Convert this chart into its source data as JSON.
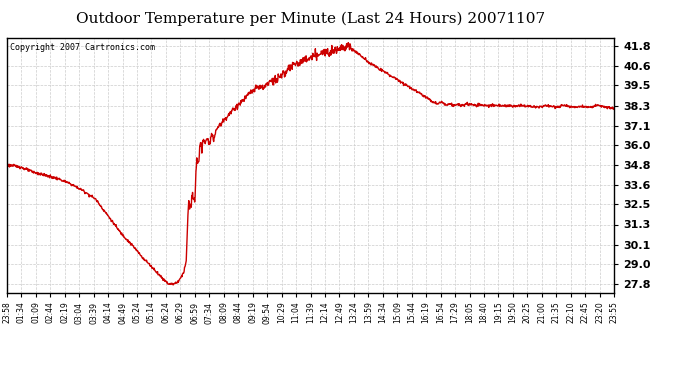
{
  "title": "Outdoor Temperature per Minute (Last 24 Hours) 20071107",
  "copyright": "Copyright 2007 Cartronics.com",
  "line_color": "#cc0000",
  "background_color": "#ffffff",
  "grid_color": "#cccccc",
  "title_fontsize": 11,
  "yticks": [
    27.8,
    29.0,
    30.1,
    31.3,
    32.5,
    33.6,
    34.8,
    36.0,
    37.1,
    38.3,
    39.5,
    40.6,
    41.8
  ],
  "ylim": [
    27.3,
    42.3
  ],
  "xtick_labels": [
    "23:58",
    "01:34",
    "01:09",
    "02:44",
    "02:19",
    "03:04",
    "03:39",
    "04:14",
    "04:49",
    "05:24",
    "05:14",
    "06:24",
    "06:29",
    "06:59",
    "07:34",
    "08:09",
    "08:44",
    "09:19",
    "09:54",
    "10:29",
    "11:04",
    "11:39",
    "12:14",
    "12:49",
    "13:24",
    "13:59",
    "14:34",
    "15:09",
    "15:44",
    "16:19",
    "16:54",
    "17:29",
    "18:05",
    "18:40",
    "19:15",
    "19:50",
    "20:25",
    "21:00",
    "21:35",
    "22:10",
    "22:45",
    "23:20",
    "23:55"
  ],
  "line_width": 1.0,
  "keypoints": [
    [
      0,
      34.8
    ],
    [
      30,
      34.7
    ],
    [
      60,
      34.4
    ],
    [
      90,
      34.2
    ],
    [
      120,
      34.0
    ],
    [
      150,
      33.7
    ],
    [
      180,
      33.3
    ],
    [
      210,
      32.8
    ],
    [
      240,
      31.8
    ],
    [
      270,
      30.8
    ],
    [
      300,
      30.0
    ],
    [
      320,
      29.4
    ],
    [
      340,
      28.9
    ],
    [
      355,
      28.5
    ],
    [
      370,
      28.1
    ],
    [
      383,
      27.82
    ],
    [
      390,
      27.8
    ],
    [
      395,
      27.82
    ],
    [
      400,
      27.85
    ],
    [
      408,
      28.0
    ],
    [
      415,
      28.3
    ],
    [
      420,
      28.6
    ],
    [
      425,
      29.2
    ],
    [
      430,
      32.5
    ],
    [
      435,
      32.3
    ],
    [
      440,
      33.0
    ],
    [
      445,
      32.6
    ],
    [
      450,
      35.2
    ],
    [
      455,
      35.0
    ],
    [
      458,
      36.0
    ],
    [
      462,
      35.8
    ],
    [
      465,
      36.2
    ],
    [
      470,
      36.0
    ],
    [
      475,
      36.4
    ],
    [
      480,
      36.1
    ],
    [
      485,
      36.5
    ],
    [
      490,
      36.3
    ],
    [
      495,
      36.8
    ],
    [
      500,
      37.0
    ],
    [
      510,
      37.3
    ],
    [
      520,
      37.6
    ],
    [
      530,
      37.9
    ],
    [
      540,
      38.1
    ],
    [
      550,
      38.4
    ],
    [
      560,
      38.6
    ],
    [
      570,
      38.9
    ],
    [
      580,
      39.1
    ],
    [
      590,
      39.3
    ],
    [
      600,
      39.4
    ],
    [
      610,
      39.3
    ],
    [
      615,
      39.6
    ],
    [
      620,
      39.5
    ],
    [
      625,
      39.9
    ],
    [
      630,
      39.6
    ],
    [
      635,
      40.0
    ],
    [
      640,
      39.7
    ],
    [
      645,
      40.1
    ],
    [
      650,
      40.0
    ],
    [
      655,
      40.3
    ],
    [
      660,
      40.2
    ],
    [
      665,
      40.4
    ],
    [
      670,
      40.5
    ],
    [
      675,
      40.6
    ],
    [
      680,
      40.7
    ],
    [
      690,
      40.8
    ],
    [
      700,
      40.9
    ],
    [
      710,
      41.0
    ],
    [
      720,
      41.1
    ],
    [
      730,
      41.2
    ],
    [
      740,
      41.3
    ],
    [
      750,
      41.4
    ],
    [
      760,
      41.5
    ],
    [
      770,
      41.55
    ],
    [
      780,
      41.6
    ],
    [
      790,
      41.7
    ],
    [
      800,
      41.75
    ],
    [
      808,
      41.8
    ],
    [
      812,
      41.75
    ],
    [
      818,
      41.65
    ],
    [
      825,
      41.5
    ],
    [
      835,
      41.3
    ],
    [
      845,
      41.1
    ],
    [
      860,
      40.8
    ],
    [
      880,
      40.5
    ],
    [
      900,
      40.2
    ],
    [
      920,
      39.9
    ],
    [
      940,
      39.6
    ],
    [
      960,
      39.3
    ],
    [
      980,
      39.0
    ],
    [
      1000,
      38.7
    ],
    [
      1010,
      38.5
    ],
    [
      1020,
      38.4
    ],
    [
      1030,
      38.5
    ],
    [
      1040,
      38.35
    ],
    [
      1050,
      38.4
    ],
    [
      1060,
      38.3
    ],
    [
      1070,
      38.35
    ],
    [
      1080,
      38.3
    ],
    [
      1090,
      38.4
    ],
    [
      1100,
      38.35
    ],
    [
      1110,
      38.3
    ],
    [
      1120,
      38.35
    ],
    [
      1130,
      38.3
    ],
    [
      1140,
      38.3
    ],
    [
      1160,
      38.3
    ],
    [
      1180,
      38.3
    ],
    [
      1200,
      38.25
    ],
    [
      1220,
      38.3
    ],
    [
      1240,
      38.25
    ],
    [
      1260,
      38.2
    ],
    [
      1280,
      38.3
    ],
    [
      1300,
      38.2
    ],
    [
      1320,
      38.3
    ],
    [
      1340,
      38.2
    ],
    [
      1360,
      38.25
    ],
    [
      1380,
      38.2
    ],
    [
      1400,
      38.3
    ],
    [
      1420,
      38.2
    ],
    [
      1439,
      38.1
    ]
  ]
}
